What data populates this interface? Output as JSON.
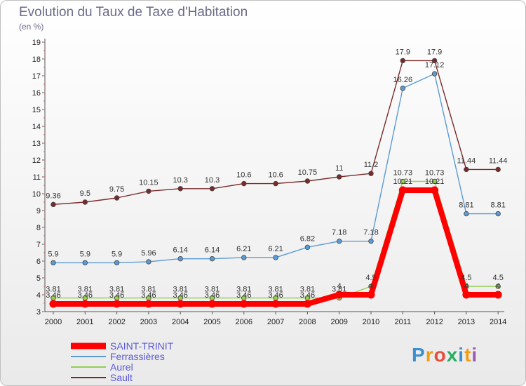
{
  "chart_data": {
    "type": "line",
    "title": "Evolution du Taux de Taxe d'Habitation",
    "subtitle": "(en %)",
    "x": [
      "2000",
      "2001",
      "2002",
      "2003",
      "2004",
      "2005",
      "2006",
      "2007",
      "2008",
      "2009",
      "2010",
      "2011",
      "2012",
      "2013",
      "2014"
    ],
    "ylim": [
      3,
      19
    ],
    "yticks": [
      3,
      4,
      5,
      6,
      7,
      8,
      9,
      10,
      11,
      12,
      13,
      14,
      15,
      16,
      17,
      18,
      19
    ],
    "grid": false,
    "legend_position": "bottom-left",
    "series": [
      {
        "name": "SAINT-TRINIT",
        "color": "#ff0000",
        "values": [
          3.46,
          3.46,
          3.46,
          3.46,
          3.46,
          3.46,
          3.46,
          3.46,
          3.46,
          4,
          4,
          10.21,
          10.21,
          4,
          4
        ],
        "labels": [
          "3.46",
          "3.46",
          "3.46",
          "3.46",
          "3.46",
          "3.46",
          "3.46",
          "3.46",
          "3.46",
          "4",
          "4",
          "10.21",
          "10.21",
          "4",
          "4"
        ]
      },
      {
        "name": "Ferrassières",
        "color": "#5b9bd5",
        "values": [
          5.9,
          5.9,
          5.9,
          5.96,
          6.14,
          6.14,
          6.21,
          6.21,
          6.82,
          7.18,
          7.18,
          16.26,
          17.12,
          8.81,
          8.81
        ],
        "labels": [
          "5.9",
          "5.9",
          "5.9",
          "5.96",
          "6.14",
          "6.14",
          "6.21",
          "6.21",
          "6.82",
          "7.18",
          "7.18",
          "16.26",
          "17.12",
          "8.81",
          "8.81"
        ]
      },
      {
        "name": "Aurel",
        "color": "#92d050",
        "values": [
          3.81,
          3.81,
          3.81,
          3.81,
          3.81,
          3.81,
          3.81,
          3.81,
          3.81,
          3.81,
          4.5,
          10.73,
          10.73,
          4.5,
          4.5
        ],
        "labels": [
          "3.81",
          "3.81",
          "3.81",
          "3.81",
          "3.81",
          "3.81",
          "3.81",
          "3.81",
          "3.81",
          "3.81",
          "4.5",
          "10.73",
          "10.73",
          "4.5",
          "4.5"
        ]
      },
      {
        "name": "Sault",
        "color": "#7b2a2a",
        "values": [
          9.36,
          9.5,
          9.75,
          10.15,
          10.3,
          10.3,
          10.6,
          10.6,
          10.75,
          11,
          11.2,
          17.9,
          17.9,
          11.44,
          11.44
        ],
        "labels": [
          "9.36",
          "9.5",
          "9.75",
          "10.15",
          "10.3",
          "10.3",
          "10.6",
          "10.6",
          "10.75",
          "11",
          "11.2",
          "17.9",
          "17.9",
          "11.44",
          "11.44"
        ]
      }
    ]
  },
  "logo": {
    "text": "Proxiti"
  }
}
